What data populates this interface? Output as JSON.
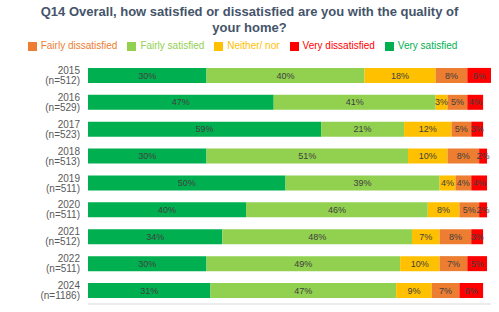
{
  "chart_data": {
    "type": "bar",
    "title": "Q14 Overall, how satisfied or dissatisfied are you with the quality of your home?",
    "orientation": "horizontal",
    "stacked": true,
    "data_labels": true,
    "legend": "top",
    "tick_labels": "y",
    "grid": false,
    "categories": [
      "2015 (n=512)",
      "2016 (n=529)",
      "2017 (n=523)",
      "2018 (n=513)",
      "2019 (n=511)",
      "2020 (n=511)",
      "2021 (n=512)",
      "2022 (n=511)",
      "2024 (n=1186)"
    ],
    "xlim": [
      0,
      102
    ],
    "series": [
      {
        "name": "Very satisfied",
        "color": "#00B050",
        "values": [
          30,
          47,
          59,
          30,
          50,
          40,
          34,
          30,
          31
        ],
        "value_labels": [
          "30%",
          "47%",
          "59%",
          "30%",
          "50%",
          "40%",
          "34%",
          "30%",
          "31%"
        ]
      },
      {
        "name": "Fairly satisfied",
        "color": "#92D050",
        "values": [
          40,
          41,
          21,
          51,
          39,
          46,
          48,
          49,
          47
        ],
        "value_labels": [
          "40%",
          "41%",
          "21%",
          "51%",
          "39%",
          "46%",
          "48%",
          "49%",
          "47%"
        ]
      },
      {
        "name": "Neither/ nor",
        "color": "#FFC000",
        "values": [
          18,
          3,
          12,
          10,
          4,
          8,
          7,
          10,
          9
        ],
        "value_labels": [
          "18%",
          "3%",
          "12%",
          "10%",
          "4%",
          "8%",
          "7%",
          "10%",
          "9%"
        ]
      },
      {
        "name": "Fairly dissatisfied",
        "color": "#ED7D31",
        "values": [
          8,
          5,
          5,
          8,
          4,
          5,
          8,
          7,
          7
        ],
        "value_labels": [
          "8%",
          "5%",
          "5%",
          "8%",
          "4%",
          "5%",
          "8%",
          "7%",
          "7%"
        ]
      },
      {
        "name": "Very dissatisfied",
        "color": "#FF0000",
        "values": [
          6,
          4,
          3,
          2,
          4,
          2,
          3,
          5,
          6
        ],
        "value_labels": [
          "6%",
          "4%",
          "3%",
          "2%",
          "4%",
          "2%",
          "3%",
          "5%",
          "6%"
        ]
      }
    ]
  }
}
